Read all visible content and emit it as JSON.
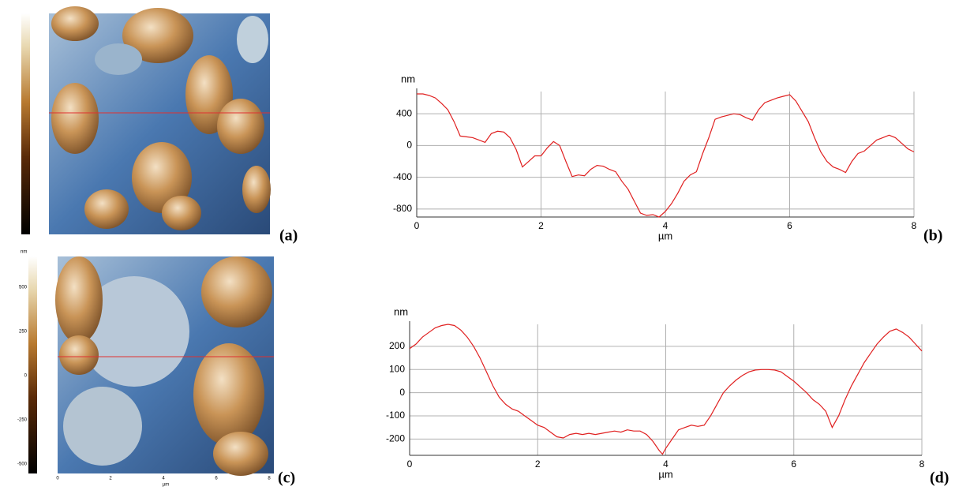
{
  "chart_data": [
    {
      "type": "line",
      "y_label": "nm",
      "x_label": "µm",
      "xlim": [
        0,
        8
      ],
      "xticks": [
        0,
        2,
        4,
        6,
        8
      ],
      "ylim": [
        -900,
        680
      ],
      "yticks": [
        -800,
        -400,
        0,
        400
      ],
      "grid": true,
      "x": [
        0,
        0.1,
        0.2,
        0.3,
        0.4,
        0.5,
        0.6,
        0.7,
        0.8,
        0.9,
        1.0,
        1.1,
        1.2,
        1.3,
        1.4,
        1.5,
        1.6,
        1.7,
        1.8,
        1.9,
        2.0,
        2.1,
        2.2,
        2.3,
        2.4,
        2.5,
        2.6,
        2.7,
        2.8,
        2.9,
        3.0,
        3.1,
        3.2,
        3.3,
        3.4,
        3.5,
        3.6,
        3.7,
        3.8,
        3.9,
        4.0,
        4.1,
        4.2,
        4.3,
        4.4,
        4.5,
        4.6,
        4.7,
        4.8,
        4.9,
        5.0,
        5.1,
        5.2,
        5.3,
        5.4,
        5.5,
        5.6,
        5.7,
        5.8,
        5.9,
        6.0,
        6.1,
        6.2,
        6.3,
        6.4,
        6.5,
        6.6,
        6.7,
        6.8,
        6.9,
        7.0,
        7.1,
        7.2,
        7.3,
        7.4,
        7.5,
        7.6,
        7.7,
        7.8,
        7.9,
        8.0
      ],
      "series": [
        {
          "color": "#e02020",
          "values": [
            650,
            650,
            630,
            600,
            530,
            450,
            300,
            120,
            110,
            100,
            70,
            40,
            150,
            180,
            170,
            100,
            -50,
            -270,
            -200,
            -130,
            -130,
            -30,
            50,
            0,
            -200,
            -390,
            -370,
            -380,
            -300,
            -250,
            -260,
            -300,
            -330,
            -450,
            -550,
            -700,
            -850,
            -880,
            -870,
            -900,
            -830,
            -730,
            -600,
            -450,
            -370,
            -330,
            -100,
            100,
            330,
            360,
            380,
            400,
            390,
            350,
            320,
            450,
            540,
            570,
            600,
            620,
            640,
            560,
            430,
            300,
            100,
            -80,
            -200,
            -270,
            -300,
            -340,
            -200,
            -100,
            -70,
            0,
            70,
            100,
            130,
            100,
            30,
            -40,
            -80
          ]
        }
      ]
    },
    {
      "type": "line",
      "y_label": "nm",
      "x_label": "µm",
      "xlim": [
        0,
        8
      ],
      "xticks": [
        0,
        2,
        4,
        6,
        8
      ],
      "ylim": [
        -270,
        295
      ],
      "yticks": [
        -200,
        -100,
        0,
        100,
        200
      ],
      "grid": true,
      "x": [
        0,
        0.1,
        0.2,
        0.3,
        0.4,
        0.5,
        0.6,
        0.7,
        0.8,
        0.9,
        1.0,
        1.1,
        1.2,
        1.3,
        1.4,
        1.5,
        1.6,
        1.7,
        1.8,
        1.9,
        2.0,
        2.1,
        2.2,
        2.3,
        2.4,
        2.5,
        2.6,
        2.7,
        2.8,
        2.9,
        3.0,
        3.1,
        3.2,
        3.3,
        3.4,
        3.5,
        3.6,
        3.7,
        3.8,
        3.9,
        3.95,
        4.0,
        4.1,
        4.2,
        4.3,
        4.4,
        4.5,
        4.6,
        4.7,
        4.8,
        4.9,
        5.0,
        5.1,
        5.2,
        5.3,
        5.4,
        5.5,
        5.6,
        5.7,
        5.8,
        5.9,
        6.0,
        6.1,
        6.2,
        6.3,
        6.4,
        6.5,
        6.6,
        6.7,
        6.8,
        6.9,
        7.0,
        7.1,
        7.2,
        7.3,
        7.4,
        7.5,
        7.6,
        7.7,
        7.8,
        7.9,
        8.0
      ],
      "series": [
        {
          "color": "#e02020",
          "values": [
            190,
            210,
            240,
            260,
            280,
            290,
            295,
            290,
            270,
            240,
            200,
            150,
            90,
            30,
            -20,
            -50,
            -70,
            -80,
            -100,
            -120,
            -140,
            -150,
            -170,
            -190,
            -195,
            -180,
            -175,
            -180,
            -175,
            -180,
            -175,
            -170,
            -165,
            -170,
            -160,
            -165,
            -165,
            -180,
            -210,
            -250,
            -265,
            -240,
            -200,
            -160,
            -150,
            -140,
            -145,
            -140,
            -100,
            -50,
            0,
            30,
            55,
            75,
            90,
            98,
            100,
            100,
            98,
            90,
            70,
            50,
            25,
            0,
            -30,
            -50,
            -80,
            -150,
            -100,
            -30,
            30,
            80,
            130,
            170,
            210,
            240,
            265,
            275,
            260,
            240,
            210,
            180
          ]
        }
      ]
    }
  ],
  "panel_labels": [
    "(a)",
    "(b)",
    "(c)",
    "(d)"
  ],
  "image_c": {
    "colorbar_unit": "nm",
    "colorbar_ticks": [
      500,
      250,
      0,
      -250,
      -500
    ],
    "xticks": [
      0,
      2,
      4,
      6,
      8
    ],
    "x_label": "µm"
  }
}
